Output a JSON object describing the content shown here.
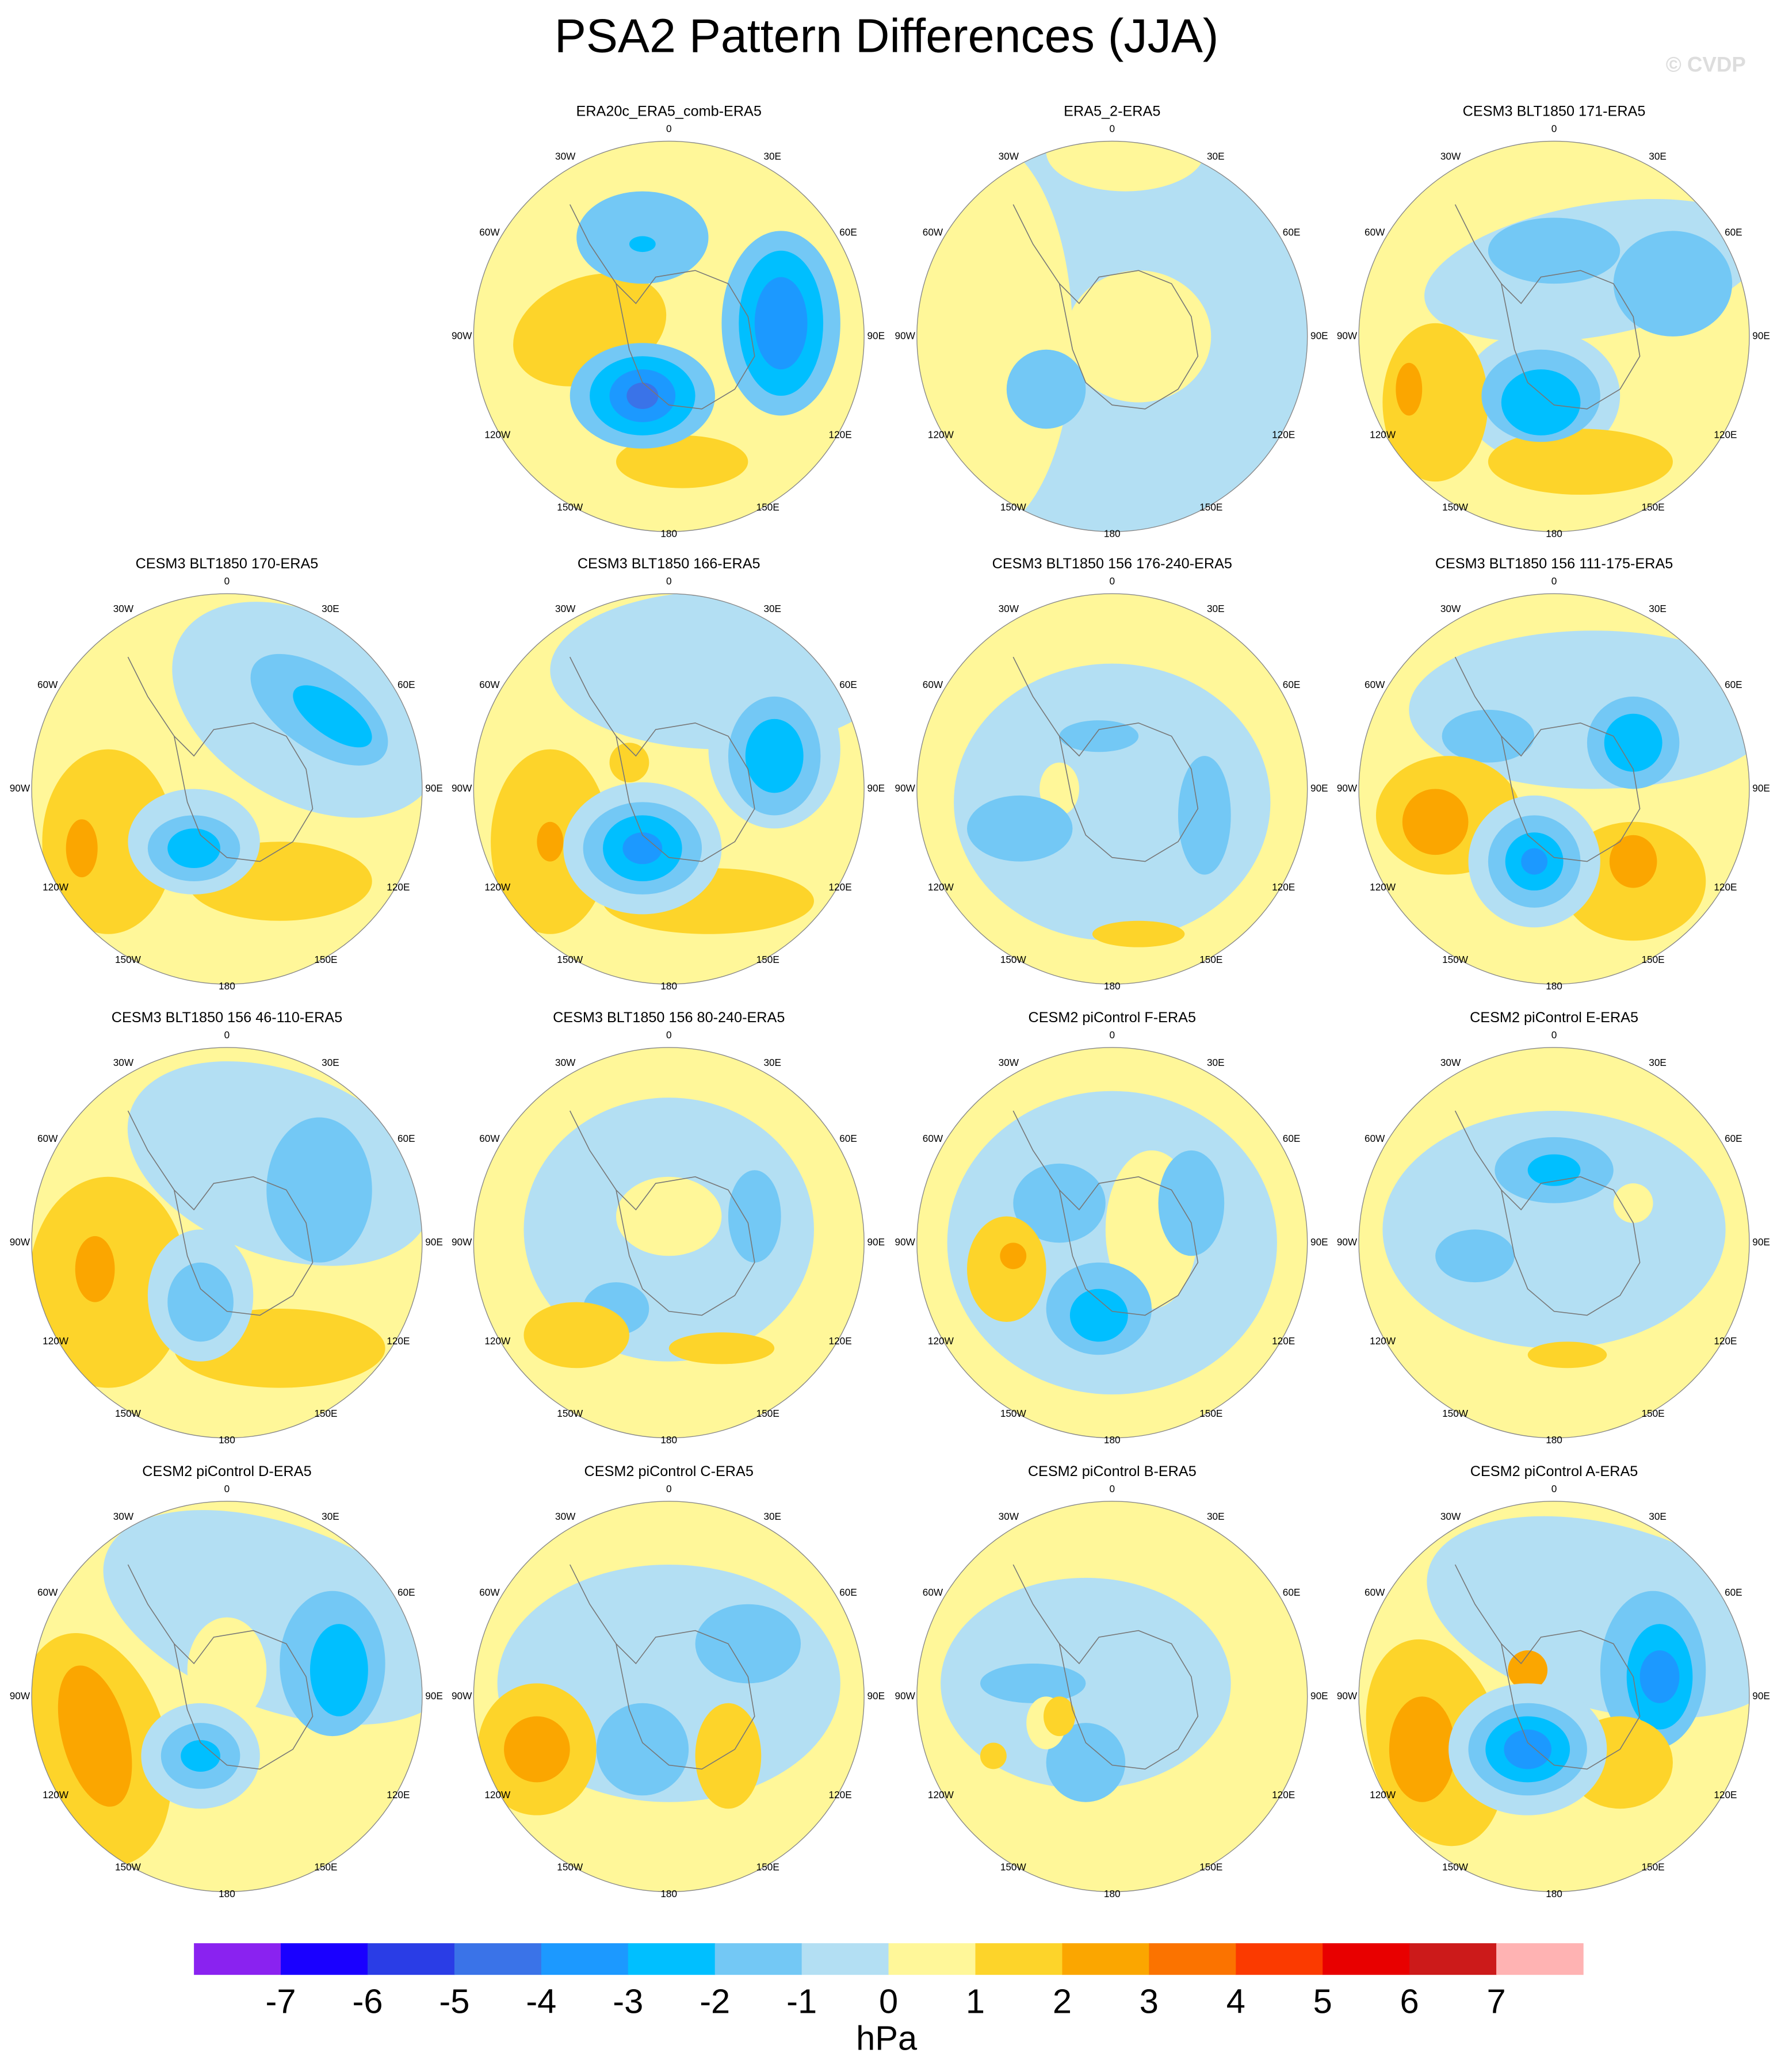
{
  "title": "PSA2 Pattern Differences (JJA)",
  "watermark": "© CVDP",
  "lon_labels": [
    "0",
    "30E",
    "60E",
    "90E",
    "120E",
    "150E",
    "180",
    "150W",
    "120W",
    "90W",
    "60W",
    "30W"
  ],
  "panels": [
    {
      "title": "ERA20c_ERA5_comb-ERA5"
    },
    {
      "title": "ERA5_2-ERA5"
    },
    {
      "title": "CESM3 BLT1850 171-ERA5"
    },
    {
      "title": "CESM3 BLT1850 170-ERA5"
    },
    {
      "title": "CESM3 BLT1850 166-ERA5"
    },
    {
      "title": "CESM3 BLT1850 156 176-240-ERA5"
    },
    {
      "title": "CESM3 BLT1850 156 111-175-ERA5"
    },
    {
      "title": "CESM3 BLT1850 156 46-110-ERA5"
    },
    {
      "title": "CESM3 BLT1850 156 80-240-ERA5"
    },
    {
      "title": "CESM2 piControl F-ERA5"
    },
    {
      "title": "CESM2 piControl E-ERA5"
    },
    {
      "title": "CESM2 piControl D-ERA5"
    },
    {
      "title": "CESM2 piControl C-ERA5"
    },
    {
      "title": "CESM2 piControl B-ERA5"
    },
    {
      "title": "CESM2 piControl A-ERA5"
    }
  ],
  "colorbar": {
    "colors": [
      "#8a22f0",
      "#1a00ff",
      "#2a3de6",
      "#3a73e8",
      "#1c99ff",
      "#00bfff",
      "#73c8f5",
      "#b3dff3",
      "#fff799",
      "#fdd42a",
      "#fba600",
      "#fb7300",
      "#fb3a00",
      "#e80000",
      "#cc1a1a",
      "#ffb3b3"
    ],
    "ticks": [
      -7,
      -6,
      -5,
      -4,
      -3,
      -2,
      -1,
      0,
      1,
      2,
      3,
      4,
      5,
      6,
      7
    ],
    "label": "hPa"
  }
}
